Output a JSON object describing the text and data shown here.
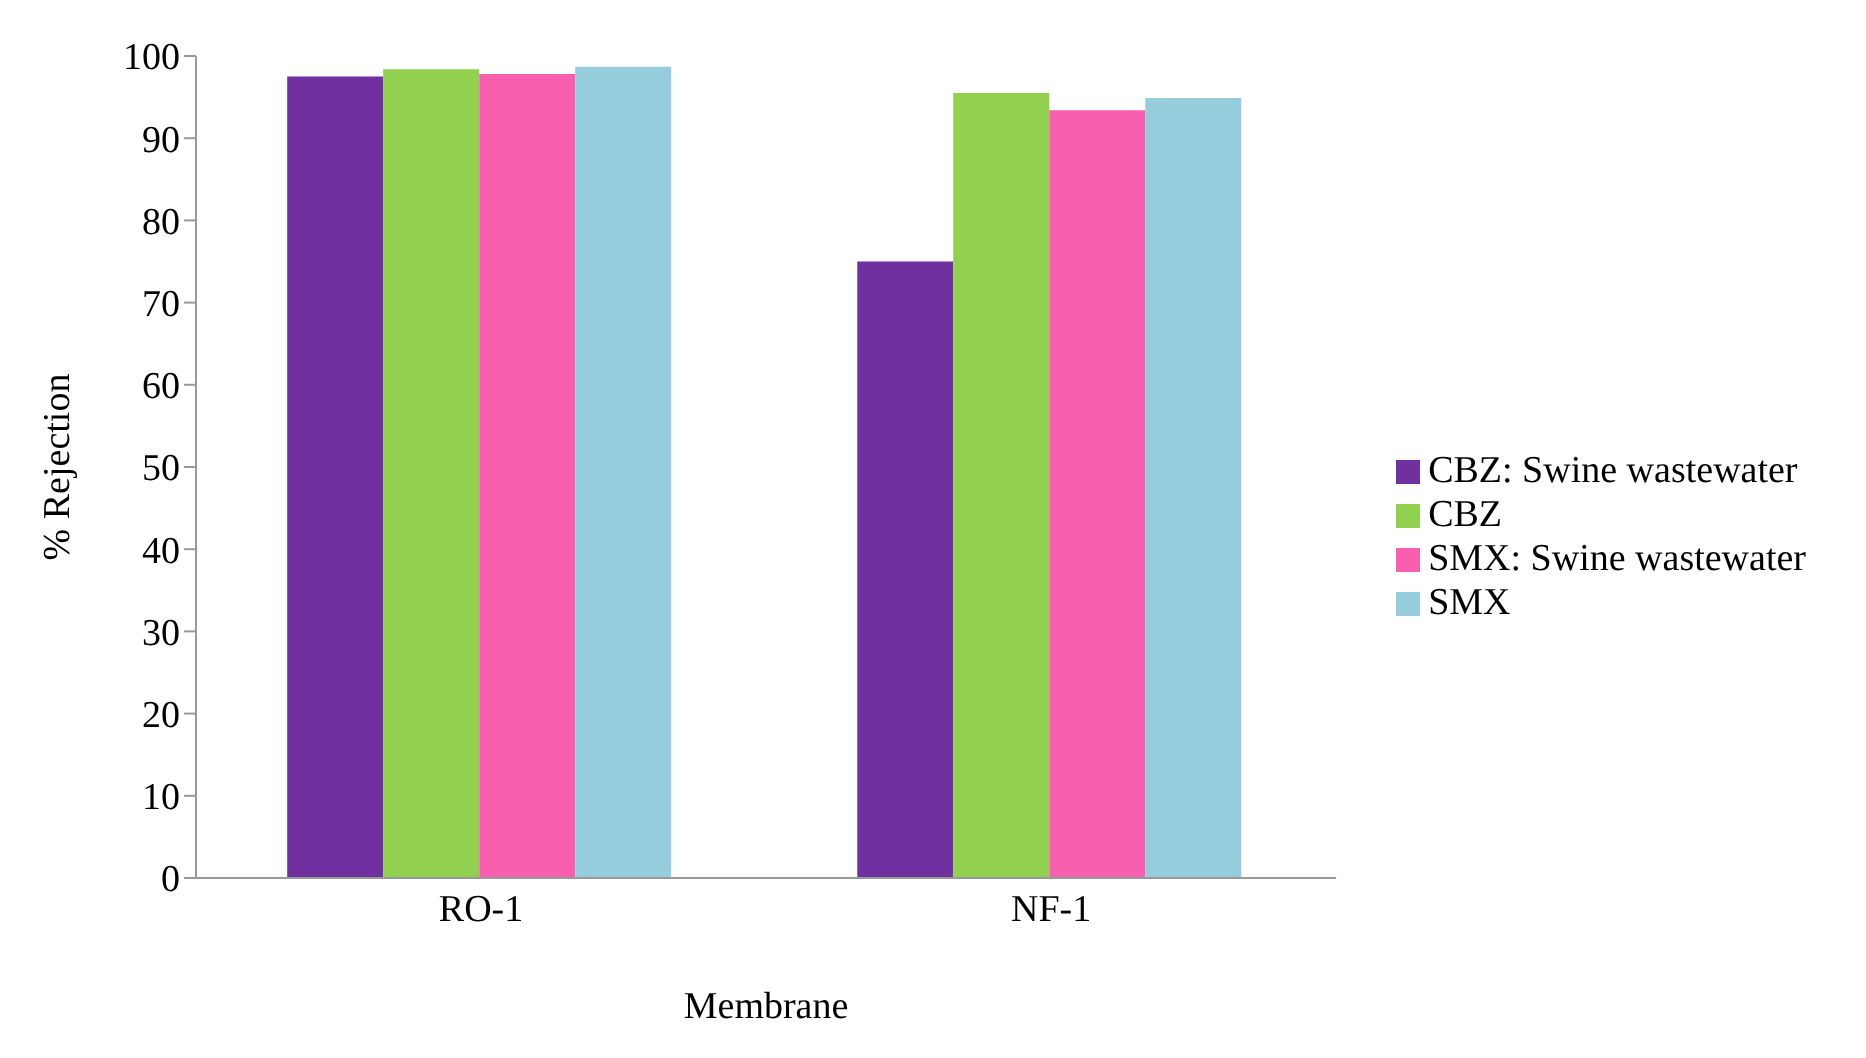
{
  "chart_data": {
    "type": "bar",
    "xlabel": "Membrane",
    "ylabel": "% Rejection",
    "categories": [
      "RO-1",
      "NF-1"
    ],
    "series": [
      {
        "name": "CBZ: Swine wastewater",
        "color": "#7030a0",
        "values": [
          97.5,
          75
        ]
      },
      {
        "name": "CBZ",
        "color": "#92d050",
        "values": [
          98.4,
          95.5
        ]
      },
      {
        "name": "SMX: Swine wastewater",
        "color": "#f85fae",
        "values": [
          97.8,
          93.4
        ]
      },
      {
        "name": "SMX",
        "color": "#96cddc",
        "values": [
          98.7,
          94.9
        ]
      }
    ],
    "ylim": [
      0,
      100
    ],
    "yticks": [
      0,
      10,
      20,
      30,
      40,
      50,
      60,
      70,
      80,
      90,
      100
    ],
    "grid": false,
    "legend": "right"
  }
}
